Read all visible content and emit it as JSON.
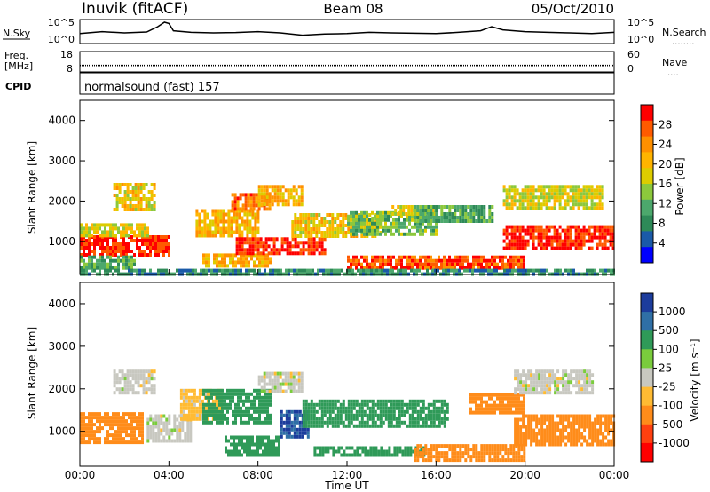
{
  "header": {
    "station": "Inuvik (fitACF)",
    "beam": "Beam 08",
    "date": "05/Oct/2010"
  },
  "nsky_panel": {
    "left_label": "N.Sky",
    "left_ticks": [
      "10^5",
      "10^0"
    ],
    "right_label": "N.Search",
    "right_ticks": [
      "10^5",
      "10^0"
    ],
    "right_legend_line": "........"
  },
  "freq_panel": {
    "left_label_top": "Freq.",
    "left_label_bottom": "[MHz]",
    "left_ticks": [
      "18",
      "8"
    ],
    "right_label": "Nave",
    "right_ticks": [
      "60",
      "0"
    ],
    "right_legend_line": "...."
  },
  "cpid_panel": {
    "label": "CPID",
    "text": "normalsound (fast) 157"
  },
  "power_colorbar": {
    "label": "Power [dB]",
    "ticks": [
      "28",
      "24",
      "20",
      "16",
      "12",
      "8",
      "4"
    ],
    "colors": [
      "#ff0000",
      "#ff5a00",
      "#ff9000",
      "#ffb400",
      "#ddcc00",
      "#8cc83c",
      "#4ca86c",
      "#2e8a58",
      "#1a5aa8",
      "#0000ff"
    ]
  },
  "velocity_colorbar": {
    "label": "Velocity [m s⁻¹]",
    "ticks": [
      "1000",
      "500",
      "100",
      "25",
      "-25",
      "-100",
      "-500",
      "-1000"
    ],
    "colors": [
      "#1c3c9c",
      "#2f6fa6",
      "#2f9a58",
      "#7acc3c",
      "#c8c8c0",
      "#ffbb33",
      "#ff8c1a",
      "#ff4010",
      "#ff0000"
    ]
  },
  "axes": {
    "xlabel": "Time UT",
    "xticks": [
      "00:00",
      "04:00",
      "08:00",
      "12:00",
      "16:00",
      "20:00",
      "00:00"
    ],
    "ylabel": "Slant Range [km]",
    "yticks": [
      "1000",
      "2000",
      "3000",
      "4000"
    ]
  },
  "chart_data": [
    {
      "type": "heatmap",
      "panel": "power",
      "x_label": "Time UT",
      "y_label": "Slant Range [km]",
      "xlim_hours": [
        0,
        24
      ],
      "ylim_km": [
        180,
        4500
      ],
      "value_label": "Power [dB]",
      "value_range": [
        0,
        30
      ],
      "regions": [
        {
          "t": [
            0.0,
            4.0
          ],
          "r": [
            700,
            1150
          ],
          "value": 28
        },
        {
          "t": [
            0.0,
            3.0
          ],
          "r": [
            1150,
            1450
          ],
          "value": 16
        },
        {
          "t": [
            0.0,
            2.5
          ],
          "r": [
            300,
            650
          ],
          "value": 10
        },
        {
          "t": [
            1.5,
            3.3
          ],
          "r": [
            1800,
            2450
          ],
          "value": 18
        },
        {
          "t": [
            5.2,
            8.0
          ],
          "r": [
            1100,
            1800
          ],
          "value": 20
        },
        {
          "t": [
            5.5,
            8.5
          ],
          "r": [
            400,
            700
          ],
          "value": 20
        },
        {
          "t": [
            6.8,
            8.5
          ],
          "r": [
            1800,
            2200
          ],
          "value": 24
        },
        {
          "t": [
            7.0,
            11.0
          ],
          "r": [
            700,
            1100
          ],
          "value": 28
        },
        {
          "t": [
            8.0,
            10.0
          ],
          "r": [
            1900,
            2400
          ],
          "value": 20
        },
        {
          "t": [
            9.5,
            13.5
          ],
          "r": [
            1100,
            1700
          ],
          "value": 18
        },
        {
          "t": [
            12.0,
            16.0
          ],
          "r": [
            1200,
            1750
          ],
          "value": 12
        },
        {
          "t": [
            14.0,
            16.0
          ],
          "r": [
            1700,
            1900
          ],
          "value": 16
        },
        {
          "t": [
            12.0,
            20.0
          ],
          "r": [
            300,
            650
          ],
          "value": 26
        },
        {
          "t": [
            15.0,
            18.5
          ],
          "r": [
            1500,
            1900
          ],
          "value": 10
        },
        {
          "t": [
            19.0,
            23.5
          ],
          "r": [
            1800,
            2400
          ],
          "value": 16
        },
        {
          "t": [
            19.0,
            24.0
          ],
          "r": [
            800,
            1400
          ],
          "value": 28
        },
        {
          "t": [
            0.0,
            24.0
          ],
          "r": [
            200,
            320
          ],
          "value": 8
        }
      ]
    },
    {
      "type": "heatmap",
      "panel": "velocity",
      "x_label": "Time UT",
      "y_label": "Slant Range [km]",
      "xlim_hours": [
        0,
        24
      ],
      "ylim_km": [
        180,
        4500
      ],
      "value_label": "Velocity [m s-1]",
      "value_range": [
        -1000,
        1000
      ],
      "regions": [
        {
          "t": [
            0.0,
            2.8
          ],
          "r": [
            700,
            1450
          ],
          "value": -300
        },
        {
          "t": [
            1.5,
            3.3
          ],
          "r": [
            1900,
            2450
          ],
          "value": 0
        },
        {
          "t": [
            3.0,
            5.0
          ],
          "r": [
            800,
            1400
          ],
          "value": 0
        },
        {
          "t": [
            4.5,
            6.3
          ],
          "r": [
            1300,
            2000
          ],
          "value": -50
        },
        {
          "t": [
            5.5,
            8.5
          ],
          "r": [
            1200,
            2000
          ],
          "value": 200
        },
        {
          "t": [
            6.5,
            9.0
          ],
          "r": [
            400,
            900
          ],
          "value": 200
        },
        {
          "t": [
            8.0,
            10.0
          ],
          "r": [
            1900,
            2400
          ],
          "value": 0
        },
        {
          "t": [
            9.0,
            10.2
          ],
          "r": [
            900,
            1500
          ],
          "value": 800
        },
        {
          "t": [
            10.0,
            16.5
          ],
          "r": [
            1100,
            1750
          ],
          "value": 200
        },
        {
          "t": [
            10.5,
            15.5
          ],
          "r": [
            450,
            650
          ],
          "value": 200
        },
        {
          "t": [
            15.0,
            20.0
          ],
          "r": [
            300,
            700
          ],
          "value": -200
        },
        {
          "t": [
            17.5,
            20.0
          ],
          "r": [
            1400,
            1900
          ],
          "value": -150
        },
        {
          "t": [
            19.5,
            23.0
          ],
          "r": [
            1900,
            2450
          ],
          "value": 0
        },
        {
          "t": [
            19.5,
            24.0
          ],
          "r": [
            700,
            1400
          ],
          "value": -150
        }
      ]
    },
    {
      "type": "line",
      "panel": "nsky",
      "x_label": "Time UT",
      "y_label": "N.Sky",
      "xlim_hours": [
        0,
        24
      ],
      "ylim": [
        1,
        100000
      ],
      "y_scale": "log",
      "series": [
        {
          "x": [
            0,
            1,
            2,
            3,
            3.5,
            3.8,
            4.0,
            4.2,
            5,
            6,
            7,
            8,
            9,
            10,
            11,
            12,
            13,
            14,
            15,
            16,
            17,
            18,
            18.5,
            19,
            20,
            21,
            22,
            23,
            24
          ],
          "values": [
            100,
            300,
            150,
            250,
            5000,
            60000,
            30000,
            500,
            200,
            150,
            180,
            300,
            150,
            40,
            80,
            100,
            200,
            150,
            120,
            100,
            200,
            500,
            5000,
            800,
            300,
            200,
            150,
            100,
            200
          ]
        }
      ]
    },
    {
      "type": "scatter",
      "panel": "freq",
      "x_label": "Time UT",
      "y_label": "Freq. [MHz]",
      "xlim_hours": [
        0,
        24
      ],
      "ylim": [
        8,
        18
      ],
      "series": [
        {
          "x": [
            0,
            2,
            4,
            6,
            8,
            10,
            12,
            14,
            16,
            18,
            20,
            22,
            24
          ],
          "values": [
            11,
            11,
            11,
            11,
            11,
            11,
            11,
            11,
            11,
            11,
            11,
            11,
            11
          ]
        }
      ]
    }
  ]
}
